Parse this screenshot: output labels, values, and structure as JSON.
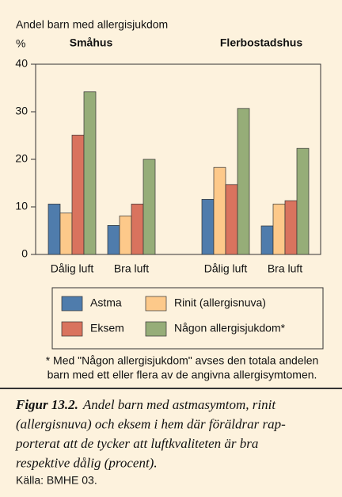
{
  "chart_data": {
    "type": "bar",
    "title": "Andel barn med allergisjukdom",
    "y_label": "%",
    "group_labels": [
      "Småhus",
      "Flerbostadshus"
    ],
    "categories": [
      "Dålig luft",
      "Bra luft",
      "Dålig luft",
      "Bra luft"
    ],
    "series": [
      {
        "name": "Astma",
        "color": "#4f7cac",
        "values": [
          10.6,
          6.1,
          11.6,
          6.0
        ]
      },
      {
        "name": "Rinit (allergisnuva)",
        "color": "#fdc98a",
        "values": [
          8.7,
          8.1,
          18.3,
          10.6
        ]
      },
      {
        "name": "Eksem",
        "color": "#d9735e",
        "values": [
          25.1,
          10.6,
          14.7,
          11.3
        ]
      },
      {
        "name": "Någon allergisjukdom*",
        "color": "#96ad78",
        "values": [
          34.2,
          20.0,
          30.7,
          22.3
        ]
      }
    ],
    "ylim": [
      0,
      40
    ],
    "yticks": [
      0,
      10,
      20,
      30,
      40
    ],
    "grid": false,
    "footnote": [
      "* Med \"Någon allergisjukdom\" avses den totala andelen",
      "barn med ett eller flera av de angivna allergisymtomen."
    ],
    "caption_label": "Figur 13.2.",
    "caption": [
      "Andel barn med astmasymtom, rinit",
      "(allergisnuva) och eksem i hem där föräldrar rap-",
      "porterat att de tycker att luftkvaliteten är bra",
      "respektive dålig (procent)."
    ],
    "source": "Källa: BMHE 03."
  }
}
